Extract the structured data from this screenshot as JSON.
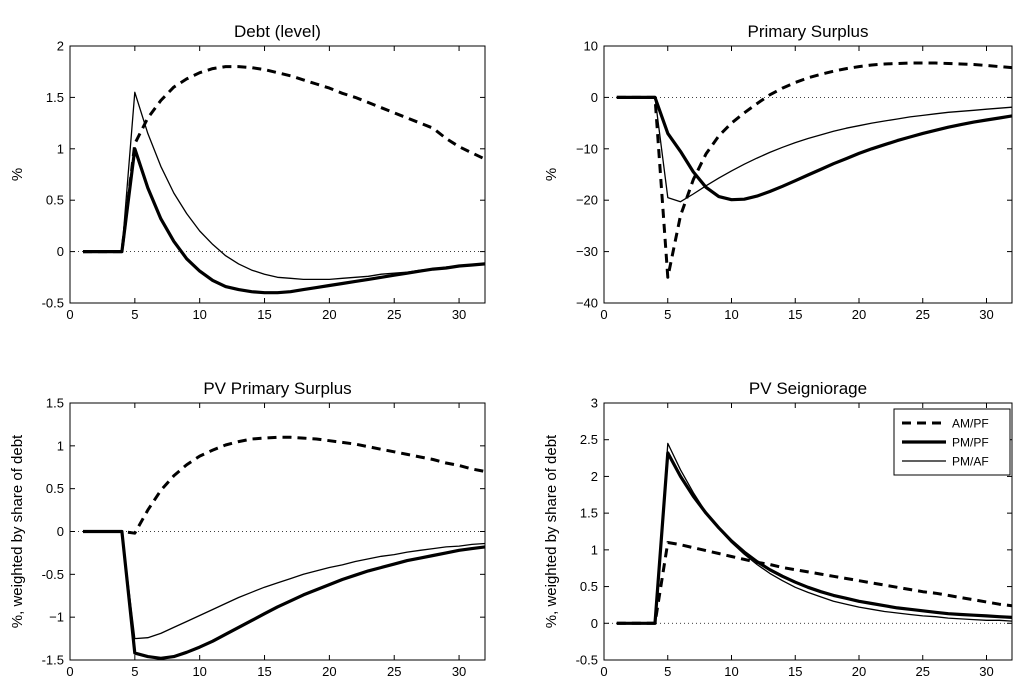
{
  "chart_data": [
    {
      "type": "line",
      "title": "Debt (level)",
      "xlabel": "",
      "ylabel": "%",
      "xlim": [
        0,
        32
      ],
      "ylim": [
        -0.5,
        2
      ],
      "xticks": [
        0,
        5,
        10,
        15,
        20,
        25,
        30
      ],
      "yticks": [
        -0.5,
        0,
        0.5,
        1,
        1.5,
        2
      ],
      "ytick_labels": [
        "-0.5",
        "0",
        "0.5",
        "1",
        "1.5",
        "2"
      ],
      "xtick_labels": [
        "0",
        "5",
        "10",
        "15",
        "20",
        "25",
        "30"
      ],
      "zero_line": true,
      "series": [
        {
          "name": "AM/PF",
          "style": "dashed",
          "x": [
            1,
            2,
            3,
            4,
            5,
            6,
            7,
            8,
            9,
            10,
            11,
            12,
            13,
            14,
            15,
            16,
            17,
            18,
            19,
            20,
            21,
            22,
            23,
            24,
            25,
            26,
            27,
            28,
            29,
            30,
            31,
            32
          ],
          "values": [
            0,
            0,
            0,
            0,
            1.05,
            1.3,
            1.47,
            1.6,
            1.68,
            1.74,
            1.78,
            1.8,
            1.8,
            1.79,
            1.77,
            1.74,
            1.71,
            1.67,
            1.63,
            1.59,
            1.54,
            1.5,
            1.45,
            1.4,
            1.35,
            1.3,
            1.25,
            1.2,
            1.1,
            1.02,
            0.96,
            0.9
          ]
        },
        {
          "name": "PM/PF",
          "style": "thick",
          "x": [
            1,
            2,
            3,
            4,
            5,
            6,
            7,
            8,
            9,
            10,
            11,
            12,
            13,
            14,
            15,
            16,
            17,
            18,
            19,
            20,
            21,
            22,
            23,
            24,
            25,
            26,
            27,
            28,
            29,
            30,
            31,
            32
          ],
          "values": [
            0,
            0,
            0,
            0,
            1.0,
            0.62,
            0.32,
            0.1,
            -0.07,
            -0.19,
            -0.28,
            -0.34,
            -0.37,
            -0.39,
            -0.4,
            -0.4,
            -0.39,
            -0.37,
            -0.35,
            -0.33,
            -0.31,
            -0.29,
            -0.27,
            -0.25,
            -0.23,
            -0.21,
            -0.19,
            -0.17,
            -0.16,
            -0.14,
            -0.13,
            -0.12
          ]
        },
        {
          "name": "PM/AF",
          "style": "thin",
          "x": [
            1,
            2,
            3,
            4,
            5,
            6,
            7,
            8,
            9,
            10,
            11,
            12,
            13,
            14,
            15,
            16,
            17,
            18,
            19,
            20,
            21,
            22,
            23,
            24,
            25,
            26,
            27,
            28,
            29,
            30,
            31,
            32
          ],
          "values": [
            0,
            0,
            0,
            0,
            1.55,
            1.15,
            0.83,
            0.57,
            0.37,
            0.2,
            0.07,
            -0.04,
            -0.12,
            -0.18,
            -0.22,
            -0.25,
            -0.26,
            -0.27,
            -0.27,
            -0.27,
            -0.26,
            -0.25,
            -0.24,
            -0.22,
            -0.21,
            -0.2,
            -0.18,
            -0.17,
            -0.15,
            -0.14,
            -0.13,
            -0.12
          ]
        }
      ]
    },
    {
      "type": "line",
      "title": "Primary Surplus",
      "xlabel": "",
      "ylabel": "%",
      "xlim": [
        0,
        32
      ],
      "ylim": [
        -40,
        10
      ],
      "xticks": [
        0,
        5,
        10,
        15,
        20,
        25,
        30
      ],
      "yticks": [
        -40,
        -30,
        -20,
        -10,
        0,
        10
      ],
      "ytick_labels": [
        "−40",
        "−30",
        "−20",
        "−10",
        "0",
        "10"
      ],
      "xtick_labels": [
        "0",
        "5",
        "10",
        "15",
        "20",
        "25",
        "30"
      ],
      "zero_line": true,
      "series": [
        {
          "name": "AM/PF",
          "style": "dashed",
          "x": [
            1,
            2,
            3,
            4,
            5,
            6,
            7,
            8,
            9,
            10,
            11,
            12,
            13,
            14,
            15,
            16,
            17,
            18,
            19,
            20,
            21,
            22,
            23,
            24,
            25,
            26,
            27,
            28,
            29,
            30,
            31,
            32
          ],
          "values": [
            0,
            0,
            0,
            0,
            -35,
            -23,
            -16,
            -11,
            -7.5,
            -5,
            -3,
            -1.2,
            0.5,
            1.8,
            2.9,
            3.8,
            4.5,
            5.1,
            5.6,
            6.0,
            6.3,
            6.5,
            6.6,
            6.7,
            6.7,
            6.7,
            6.6,
            6.5,
            6.4,
            6.2,
            6.0,
            5.8
          ]
        },
        {
          "name": "PM/PF",
          "style": "thick",
          "x": [
            1,
            2,
            3,
            4,
            5,
            6,
            7,
            8,
            9,
            10,
            11,
            12,
            13,
            14,
            15,
            16,
            17,
            18,
            19,
            20,
            21,
            22,
            23,
            24,
            25,
            26,
            27,
            28,
            29,
            30,
            31,
            32
          ],
          "values": [
            0,
            0,
            0,
            0,
            -7,
            -10.5,
            -14.5,
            -17.5,
            -19.3,
            -19.9,
            -19.8,
            -19.2,
            -18.3,
            -17.3,
            -16.2,
            -15.1,
            -14.0,
            -12.9,
            -11.9,
            -10.9,
            -10.0,
            -9.2,
            -8.4,
            -7.7,
            -7.0,
            -6.4,
            -5.8,
            -5.3,
            -4.8,
            -4.4,
            -4.0,
            -3.6
          ]
        },
        {
          "name": "PM/AF",
          "style": "thin",
          "x": [
            1,
            2,
            3,
            4,
            5,
            6,
            7,
            8,
            9,
            10,
            11,
            12,
            13,
            14,
            15,
            16,
            17,
            18,
            19,
            20,
            21,
            22,
            23,
            24,
            25,
            26,
            27,
            28,
            29,
            30,
            31,
            32
          ],
          "values": [
            0,
            0,
            0,
            0,
            -19.5,
            -20.3,
            -18.8,
            -17.2,
            -15.7,
            -14.3,
            -13.0,
            -11.8,
            -10.7,
            -9.7,
            -8.8,
            -8.0,
            -7.3,
            -6.6,
            -6.0,
            -5.5,
            -5.0,
            -4.6,
            -4.2,
            -3.8,
            -3.5,
            -3.2,
            -2.9,
            -2.7,
            -2.5,
            -2.3,
            -2.1,
            -1.9
          ]
        }
      ]
    },
    {
      "type": "line",
      "title": "PV Primary Surplus",
      "xlabel": "",
      "ylabel": "%, weighted by share of debt",
      "xlim": [
        0,
        32
      ],
      "ylim": [
        -1.5,
        1.5
      ],
      "xticks": [
        0,
        5,
        10,
        15,
        20,
        25,
        30
      ],
      "yticks": [
        -1.5,
        -1,
        -0.5,
        0,
        0.5,
        1,
        1.5
      ],
      "ytick_labels": [
        "-1.5",
        "−1",
        "-0.5",
        "0",
        "0.5",
        "1",
        "1.5"
      ],
      "xtick_labels": [
        "0",
        "5",
        "10",
        "15",
        "20",
        "25",
        "30"
      ],
      "zero_line": true,
      "series": [
        {
          "name": "AM/PF",
          "style": "dashed",
          "x": [
            1,
            2,
            3,
            4,
            5,
            6,
            7,
            8,
            9,
            10,
            11,
            12,
            13,
            14,
            15,
            16,
            17,
            18,
            19,
            20,
            21,
            22,
            23,
            24,
            25,
            26,
            27,
            28,
            29,
            30,
            31,
            32
          ],
          "values": [
            0,
            0,
            0,
            0,
            -0.02,
            0.25,
            0.48,
            0.65,
            0.78,
            0.88,
            0.95,
            1.01,
            1.05,
            1.08,
            1.09,
            1.1,
            1.1,
            1.09,
            1.08,
            1.06,
            1.04,
            1.02,
            0.99,
            0.96,
            0.93,
            0.9,
            0.87,
            0.84,
            0.8,
            0.77,
            0.73,
            0.7
          ]
        },
        {
          "name": "PM/PF",
          "style": "thick",
          "x": [
            1,
            2,
            3,
            4,
            5,
            6,
            7,
            8,
            9,
            10,
            11,
            12,
            13,
            14,
            15,
            16,
            17,
            18,
            19,
            20,
            21,
            22,
            23,
            24,
            25,
            26,
            27,
            28,
            29,
            30,
            31,
            32
          ],
          "values": [
            0,
            0,
            0,
            0,
            -1.42,
            -1.46,
            -1.48,
            -1.46,
            -1.41,
            -1.35,
            -1.28,
            -1.2,
            -1.12,
            -1.04,
            -0.96,
            -0.88,
            -0.81,
            -0.74,
            -0.68,
            -0.62,
            -0.56,
            -0.51,
            -0.46,
            -0.42,
            -0.38,
            -0.34,
            -0.31,
            -0.28,
            -0.25,
            -0.22,
            -0.2,
            -0.18
          ]
        },
        {
          "name": "PM/AF",
          "style": "thin",
          "x": [
            1,
            2,
            3,
            4,
            5,
            6,
            7,
            8,
            9,
            10,
            11,
            12,
            13,
            14,
            15,
            16,
            17,
            18,
            19,
            20,
            21,
            22,
            23,
            24,
            25,
            26,
            27,
            28,
            29,
            30,
            31,
            32
          ],
          "values": [
            0,
            0,
            0,
            0,
            -1.25,
            -1.24,
            -1.19,
            -1.12,
            -1.05,
            -0.98,
            -0.91,
            -0.84,
            -0.77,
            -0.71,
            -0.65,
            -0.6,
            -0.55,
            -0.5,
            -0.46,
            -0.42,
            -0.39,
            -0.35,
            -0.32,
            -0.29,
            -0.27,
            -0.24,
            -0.22,
            -0.2,
            -0.18,
            -0.17,
            -0.15,
            -0.14
          ]
        }
      ]
    },
    {
      "type": "line",
      "title": "PV Seigniorage",
      "xlabel": "",
      "ylabel": "%, weighted by share of debt",
      "xlim": [
        0,
        32
      ],
      "ylim": [
        -0.5,
        3
      ],
      "xticks": [
        0,
        5,
        10,
        15,
        20,
        25,
        30
      ],
      "yticks": [
        -0.5,
        0,
        0.5,
        1,
        1.5,
        2,
        2.5,
        3
      ],
      "ytick_labels": [
        "-0.5",
        "0",
        "0.5",
        "1",
        "1.5",
        "2",
        "2.5",
        "3"
      ],
      "xtick_labels": [
        "0",
        "5",
        "10",
        "15",
        "20",
        "25",
        "30"
      ],
      "zero_line": true,
      "legend": {
        "placement": "top-right",
        "entries": [
          "AM/PF",
          "PM/PF",
          "PM/AF"
        ]
      },
      "series": [
        {
          "name": "AM/PF",
          "style": "dashed",
          "x": [
            1,
            2,
            3,
            4,
            5,
            6,
            7,
            8,
            9,
            10,
            11,
            12,
            13,
            14,
            15,
            16,
            17,
            18,
            19,
            20,
            21,
            22,
            23,
            24,
            25,
            26,
            27,
            28,
            29,
            30,
            31,
            32
          ],
          "values": [
            0,
            0,
            0,
            0,
            1.1,
            1.07,
            1.03,
            0.99,
            0.95,
            0.91,
            0.87,
            0.83,
            0.8,
            0.76,
            0.73,
            0.7,
            0.67,
            0.64,
            0.61,
            0.58,
            0.55,
            0.52,
            0.49,
            0.46,
            0.43,
            0.41,
            0.38,
            0.35,
            0.32,
            0.29,
            0.26,
            0.24
          ]
        },
        {
          "name": "PM/PF",
          "style": "thick",
          "x": [
            1,
            2,
            3,
            4,
            5,
            6,
            7,
            8,
            9,
            10,
            11,
            12,
            13,
            14,
            15,
            16,
            17,
            18,
            19,
            20,
            21,
            22,
            23,
            24,
            25,
            26,
            27,
            28,
            29,
            30,
            31,
            32
          ],
          "values": [
            0,
            0,
            0,
            0,
            2.32,
            2.0,
            1.73,
            1.5,
            1.3,
            1.12,
            0.97,
            0.84,
            0.73,
            0.64,
            0.56,
            0.49,
            0.43,
            0.38,
            0.34,
            0.3,
            0.27,
            0.24,
            0.21,
            0.19,
            0.17,
            0.15,
            0.13,
            0.12,
            0.11,
            0.1,
            0.09,
            0.08
          ]
        },
        {
          "name": "PM/AF",
          "style": "thin",
          "x": [
            1,
            2,
            3,
            4,
            5,
            6,
            7,
            8,
            9,
            10,
            11,
            12,
            13,
            14,
            15,
            16,
            17,
            18,
            19,
            20,
            21,
            22,
            23,
            24,
            25,
            26,
            27,
            28,
            29,
            30,
            31,
            32
          ],
          "values": [
            0,
            0,
            0,
            0,
            2.45,
            2.09,
            1.78,
            1.51,
            1.29,
            1.1,
            0.94,
            0.8,
            0.68,
            0.58,
            0.49,
            0.42,
            0.36,
            0.3,
            0.26,
            0.22,
            0.19,
            0.16,
            0.14,
            0.12,
            0.1,
            0.09,
            0.07,
            0.06,
            0.05,
            0.04,
            0.04,
            0.03
          ]
        }
      ]
    }
  ]
}
